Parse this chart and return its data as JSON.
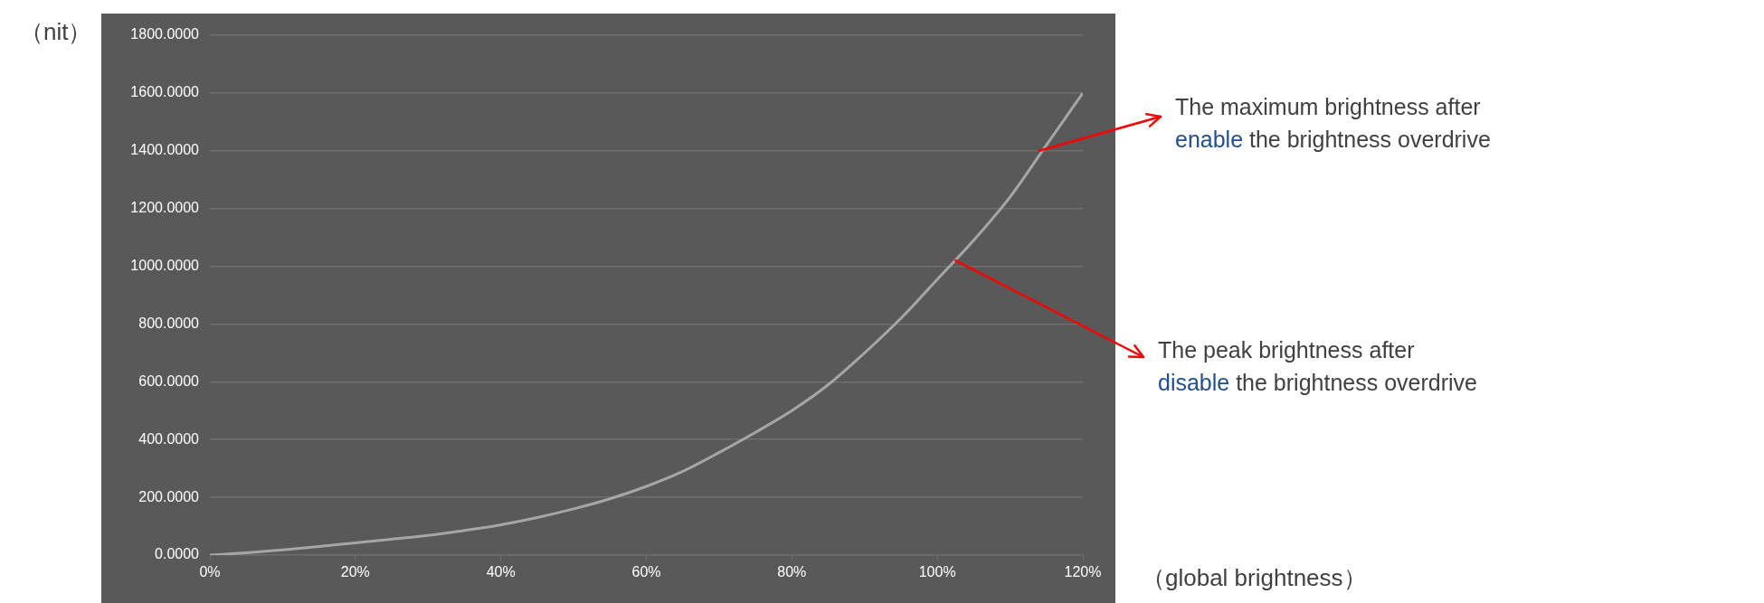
{
  "chart_data": {
    "type": "line",
    "xlabel": "（global brightness）",
    "ylabel": "（nit）",
    "x": [
      0,
      5,
      10,
      15,
      20,
      25,
      30,
      35,
      40,
      45,
      50,
      55,
      60,
      65,
      70,
      75,
      80,
      85,
      90,
      95,
      100,
      105,
      110,
      115,
      120
    ],
    "series": [
      {
        "color": "#a6a6a6",
        "values": [
          0,
          8,
          18,
          30,
          42,
          55,
          68,
          85,
          105,
          130,
          160,
          195,
          238,
          290,
          355,
          425,
          500,
          590,
          700,
          820,
          955,
          1090,
          1240,
          1420,
          1600
        ]
      }
    ],
    "xlim": [
      0,
      120
    ],
    "xticks": [
      {
        "value": 0,
        "label": "0%"
      },
      {
        "value": 20,
        "label": "20%"
      },
      {
        "value": 40,
        "label": "40%"
      },
      {
        "value": 60,
        "label": "60%"
      },
      {
        "value": 80,
        "label": "80%"
      },
      {
        "value": 100,
        "label": "100%"
      },
      {
        "value": 120,
        "label": "120%"
      }
    ],
    "ylim": [
      0,
      1800
    ],
    "yticks": [
      {
        "value": 0,
        "label": "0.0000"
      },
      {
        "value": 200,
        "label": "200.0000"
      },
      {
        "value": 400,
        "label": "400.0000"
      },
      {
        "value": 600,
        "label": "600.0000"
      },
      {
        "value": 800,
        "label": "800.0000"
      },
      {
        "value": 1000,
        "label": "1000.0000"
      },
      {
        "value": 1200,
        "label": "1200.0000"
      },
      {
        "value": 1400,
        "label": "1400.0000"
      },
      {
        "value": 1600,
        "label": "1600.0000"
      },
      {
        "value": 1800,
        "label": "1800.0000"
      }
    ],
    "grid": "y",
    "marker": "none",
    "annotations": [
      {
        "text": "The maximum brightness after\nenable the brightness overdrive",
        "x": 114,
        "y": 1400
      },
      {
        "text": "The peak brightness after\ndisable the brightness overdrive",
        "x": 102.5,
        "y": 1020
      }
    ]
  }
}
